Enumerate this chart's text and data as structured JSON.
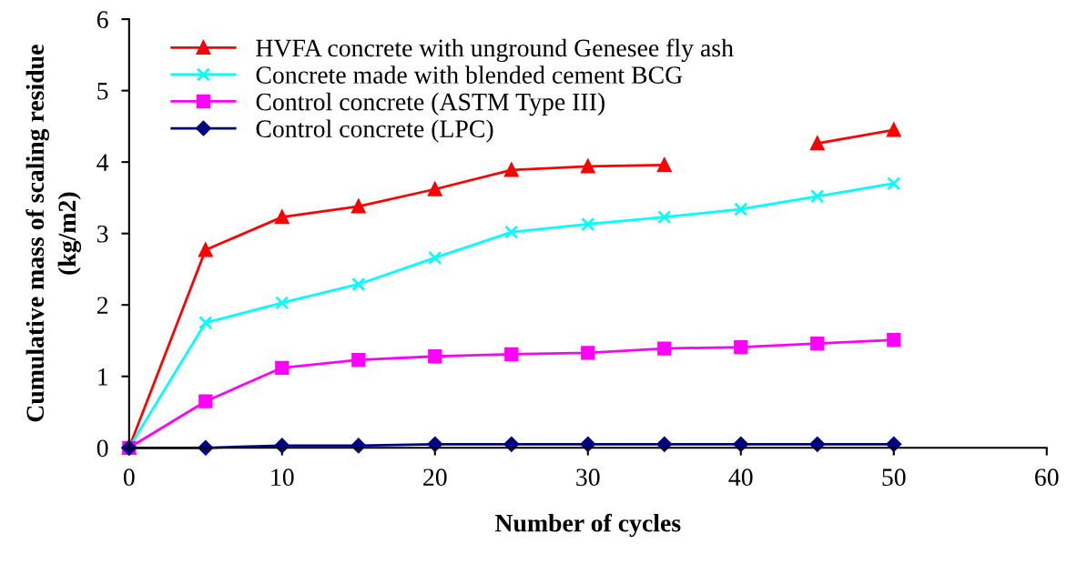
{
  "chart_data": {
    "type": "line",
    "xlabel": "Number of cycles",
    "ylabel": "Cumulative mass of scaling residue\n(kg/m2)",
    "x": [
      0,
      5,
      10,
      15,
      20,
      25,
      30,
      35,
      40,
      45,
      50
    ],
    "series": [
      {
        "name": "HVFA concrete with unground Genesee fly ash",
        "color": "#ff0000",
        "marker": "triangle",
        "values": [
          0,
          2.77,
          3.23,
          3.38,
          3.62,
          3.89,
          3.94,
          3.96,
          null,
          4.26,
          4.45
        ]
      },
      {
        "name": "Concrete made with blended cement BCG",
        "color": "#00ffff",
        "marker": "cross",
        "values": [
          0,
          1.75,
          2.03,
          2.29,
          2.66,
          3.02,
          3.13,
          3.23,
          3.34,
          3.52,
          3.7
        ]
      },
      {
        "name": "Control concrete (ASTM Type III)",
        "color": "#ff00ff",
        "marker": "square",
        "values": [
          0,
          0.65,
          1.12,
          1.23,
          1.28,
          1.31,
          1.33,
          1.39,
          1.41,
          1.46,
          1.51
        ]
      },
      {
        "name": "Control concrete (LPC)",
        "color": "#000080",
        "marker": "diamond",
        "values": [
          0,
          0,
          0.03,
          0.03,
          0.05,
          0.05,
          0.05,
          0.05,
          0.05,
          0.05,
          0.05
        ]
      }
    ],
    "xlim": [
      0,
      60
    ],
    "xticks": [
      0,
      10,
      20,
      30,
      40,
      50,
      60
    ],
    "ylim": [
      0,
      6
    ],
    "yticks": [
      0,
      1,
      2,
      3,
      4,
      5,
      6
    ],
    "grid": false,
    "legend": "top left",
    "line_style": "solid"
  }
}
